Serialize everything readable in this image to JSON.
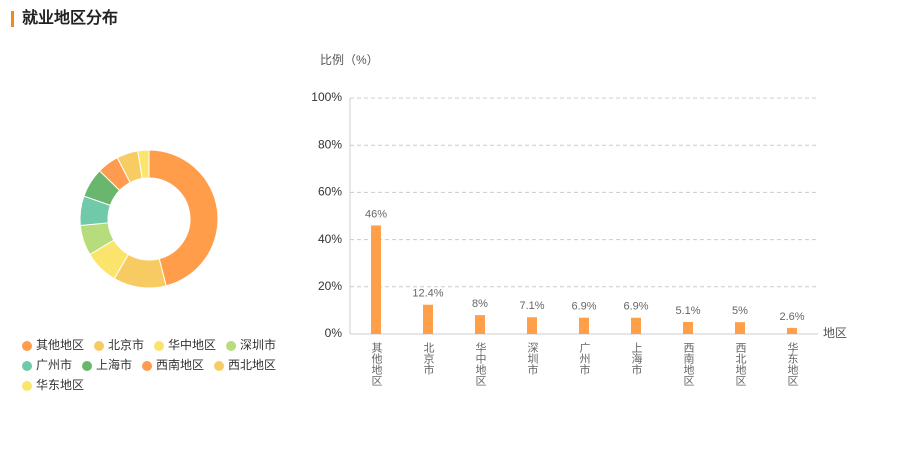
{
  "header": {
    "title": "就业地区分布"
  },
  "chart_data": [
    {
      "type": "pie",
      "categories": [
        "其他地区",
        "北京市",
        "华中地区",
        "深圳市",
        "广州市",
        "上海市",
        "西南地区",
        "西北地区",
        "华东地区"
      ],
      "values": [
        46,
        12.4,
        8,
        7.1,
        6.9,
        6.9,
        5.1,
        5,
        2.6
      ],
      "colors": [
        "#ff9d4a",
        "#f7cb62",
        "#fae46c",
        "#b7dc7b",
        "#70c9a9",
        "#6ab66f",
        "#ff9b50",
        "#f7cd63",
        "#fae66d"
      ]
    },
    {
      "type": "bar",
      "y_label": "比例（%）",
      "x_label": "地区",
      "categories": [
        "其他地区",
        "北京市",
        "华中地区",
        "深圳市",
        "广州市",
        "上海市",
        "西南地区",
        "西北地区",
        "华东地区"
      ],
      "values": [
        46,
        12.4,
        8,
        7.1,
        6.9,
        6.9,
        5.1,
        5,
        2.6
      ],
      "value_labels": [
        "46%",
        "12.4%",
        "8%",
        "7.1%",
        "6.9%",
        "6.9%",
        "5.1%",
        "5%",
        "2.6%"
      ],
      "color": "#ff9f4a",
      "ylim": [
        0,
        100
      ],
      "yticks": [
        {
          "value": 0,
          "label": "0%"
        },
        {
          "value": 20,
          "label": "20%"
        },
        {
          "value": 40,
          "label": "40%"
        },
        {
          "value": 60,
          "label": "60%"
        },
        {
          "value": 80,
          "label": "80%"
        },
        {
          "value": 100,
          "label": "100%"
        }
      ],
      "grid": true
    }
  ]
}
